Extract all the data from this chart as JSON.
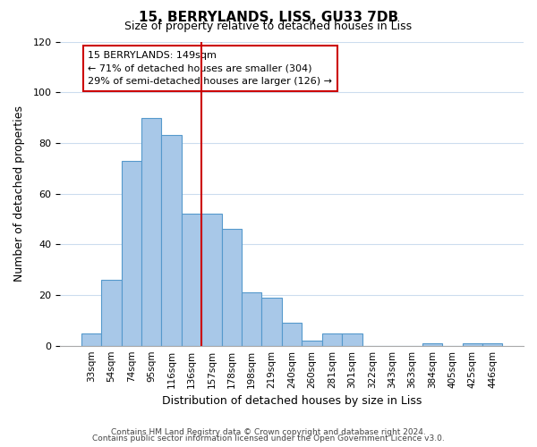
{
  "title": "15, BERRYLANDS, LISS, GU33 7DB",
  "subtitle": "Size of property relative to detached houses in Liss",
  "xlabel": "Distribution of detached houses by size in Liss",
  "ylabel": "Number of detached properties",
  "bar_labels": [
    "33sqm",
    "54sqm",
    "74sqm",
    "95sqm",
    "116sqm",
    "136sqm",
    "157sqm",
    "178sqm",
    "198sqm",
    "219sqm",
    "240sqm",
    "260sqm",
    "281sqm",
    "301sqm",
    "322sqm",
    "343sqm",
    "363sqm",
    "384sqm",
    "405sqm",
    "425sqm",
    "446sqm"
  ],
  "bar_values": [
    5,
    26,
    73,
    90,
    83,
    52,
    52,
    46,
    21,
    19,
    9,
    2,
    5,
    5,
    0,
    0,
    0,
    1,
    0,
    1,
    1
  ],
  "bar_color": "#a8c8e8",
  "bar_edge_color": "#5599cc",
  "ylim": [
    0,
    120
  ],
  "yticks": [
    0,
    20,
    40,
    60,
    80,
    100,
    120
  ],
  "vline_color": "#cc0000",
  "annotation_title": "15 BERRYLANDS: 149sqm",
  "annotation_line1": "← 71% of detached houses are smaller (304)",
  "annotation_line2": "29% of semi-detached houses are larger (126) →",
  "annotation_box_color": "#ffffff",
  "annotation_box_edge": "#cc0000",
  "footer1": "Contains HM Land Registry data © Crown copyright and database right 2024.",
  "footer2": "Contains public sector information licensed under the Open Government Licence v3.0.",
  "background_color": "#ffffff",
  "grid_color": "#ccddee"
}
